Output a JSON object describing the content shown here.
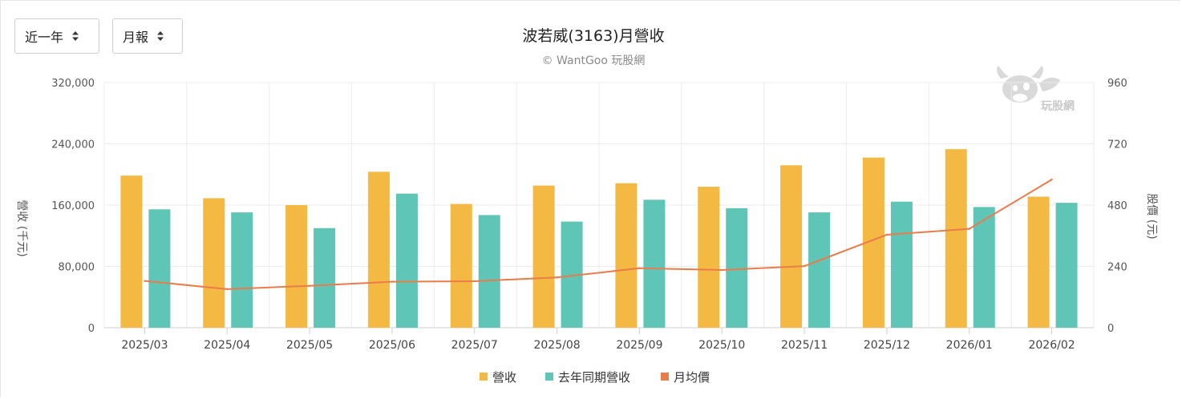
{
  "controls": {
    "range_select": {
      "value": "近一年"
    },
    "period_select": {
      "value": "月報"
    }
  },
  "watermark": {
    "text": "玩股網"
  },
  "colors": {
    "revenue": "#f4b942",
    "last_year_revenue": "#5fc6b7",
    "avg_price": "#ea7b4b",
    "grid": "#ececec"
  },
  "chart_data": {
    "type": "bar",
    "title": "波若威(3163)月營收",
    "subtitle": "© WantGoo 玩股網",
    "categories": [
      "2025/03",
      "2025/04",
      "2025/05",
      "2025/06",
      "2025/07",
      "2025/08",
      "2025/09",
      "2025/10",
      "2025/11",
      "2025/12",
      "2026/01",
      "2026/02"
    ],
    "series": [
      {
        "name": "營收",
        "kind": "bar",
        "axis": "left",
        "values": [
          198500,
          169000,
          160000,
          203500,
          161500,
          185500,
          188500,
          184000,
          212000,
          222000,
          233000,
          171000
        ]
      },
      {
        "name": "去年同期營收",
        "kind": "bar",
        "axis": "left",
        "values": [
          154500,
          150500,
          130000,
          175000,
          147000,
          138500,
          167000,
          156000,
          150500,
          164500,
          157500,
          163000
        ]
      },
      {
        "name": "月均價",
        "kind": "line",
        "axis": "right",
        "values": [
          183,
          151,
          164,
          180,
          182,
          197,
          233,
          226,
          241,
          364,
          387,
          580
        ]
      }
    ],
    "y_left": {
      "label": "營收 (千元)",
      "ticks": [
        "0",
        "80,000",
        "160,000",
        "240,000",
        "320,000"
      ],
      "range": [
        0,
        320000
      ]
    },
    "y_right": {
      "label": "股價 (元)",
      "ticks": [
        "0",
        "240",
        "480",
        "720",
        "960"
      ],
      "range": [
        0,
        960
      ]
    },
    "grid": true,
    "legend_position": "bottom-center"
  }
}
